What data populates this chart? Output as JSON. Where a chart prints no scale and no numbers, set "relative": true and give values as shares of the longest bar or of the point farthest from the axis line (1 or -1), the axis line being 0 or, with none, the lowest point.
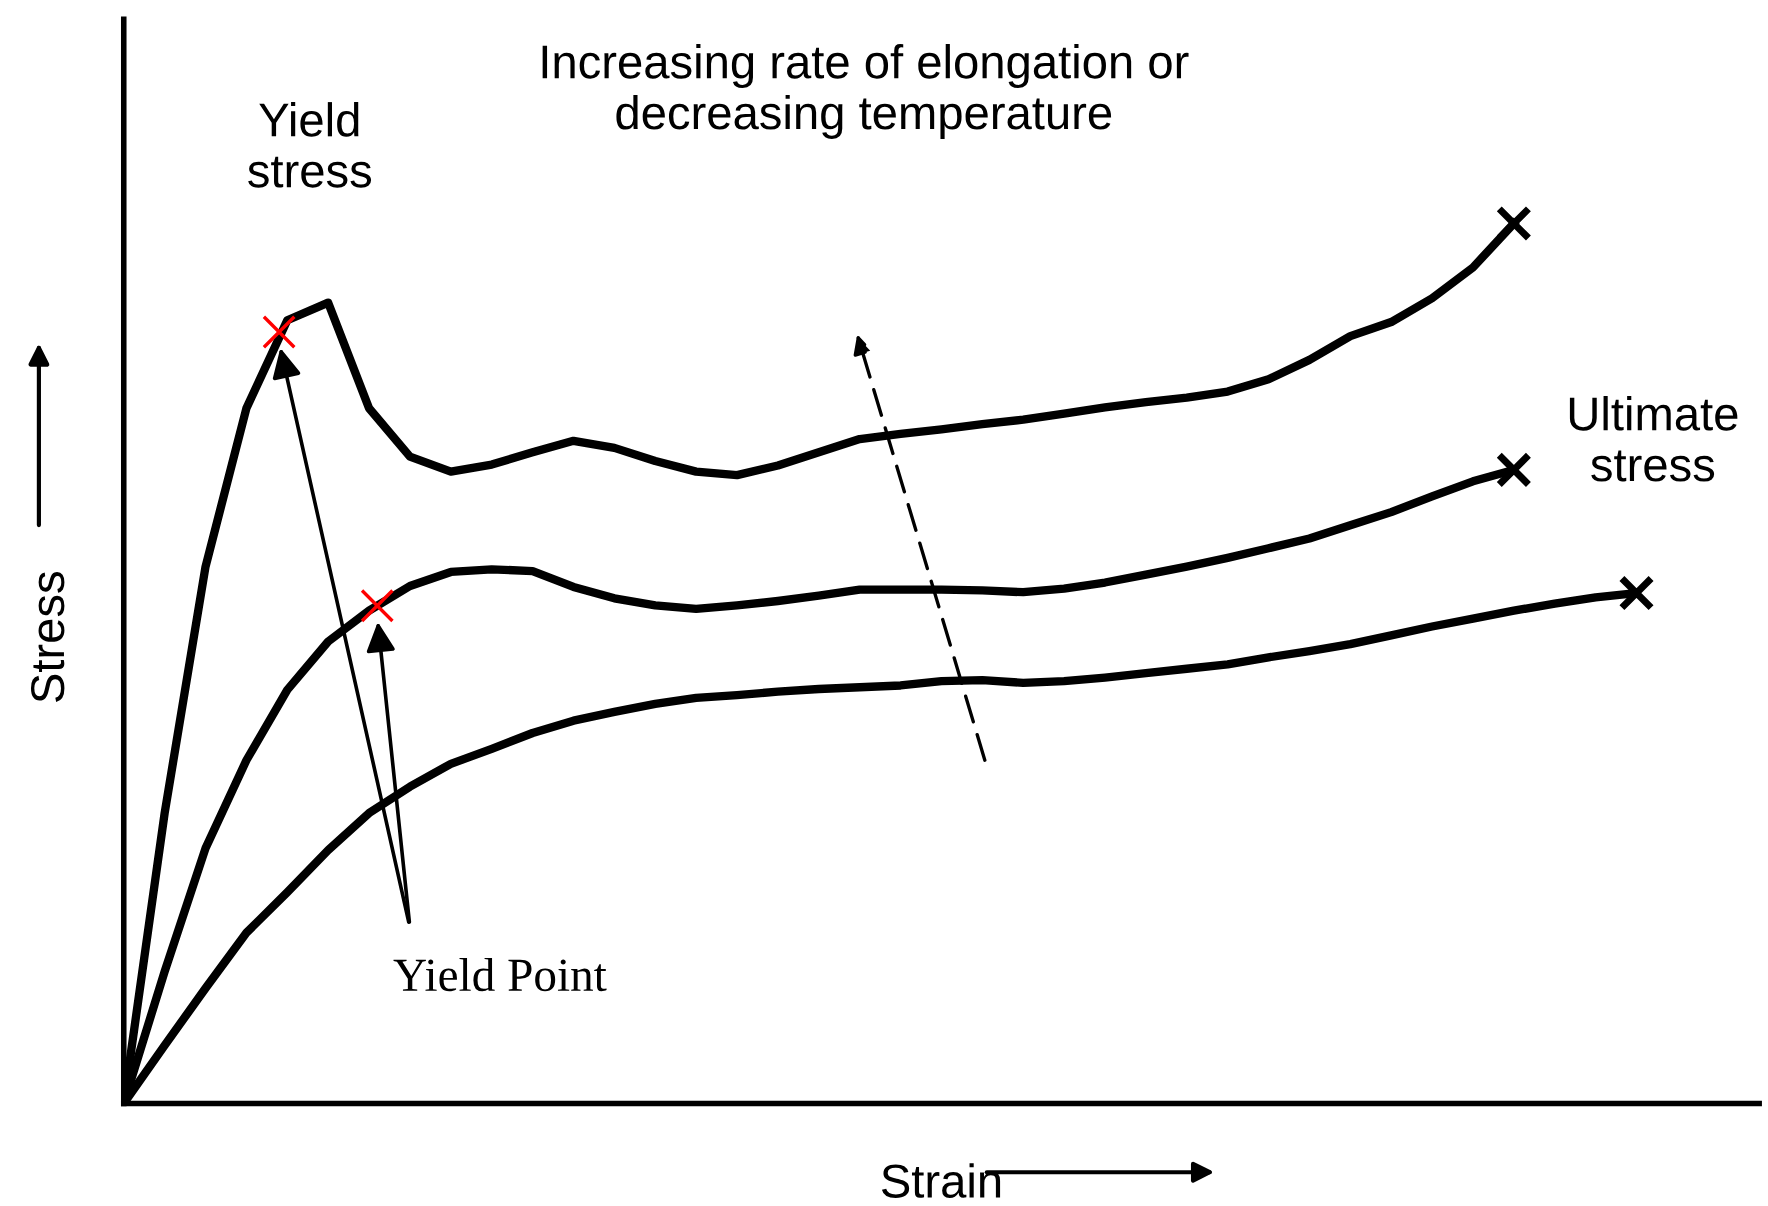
{
  "chart_data": {
    "type": "line",
    "relative": true,
    "xlabel": "Strain",
    "ylabel": "Stress",
    "line_style": "solid",
    "categories": [
      null,
      null,
      null,
      null,
      null,
      null,
      null,
      null,
      null,
      null,
      null,
      null,
      null,
      null,
      null,
      null,
      null,
      null,
      null,
      null,
      null,
      null,
      null,
      null,
      null,
      null,
      null,
      null,
      null,
      null,
      null,
      null,
      null,
      null,
      null,
      null,
      null,
      null
    ],
    "series": [
      {
        "color": "#000000",
        "values": [
          0,
          0.33,
          0.61,
          0.79,
          0.89,
          0.91,
          0.79,
          0.735,
          0.718,
          0.726,
          0.74,
          0.753,
          0.745,
          0.73,
          0.718,
          0.714,
          0.725,
          0.74,
          0.755,
          0.761,
          0.766,
          0.772,
          0.777,
          0.784,
          0.791,
          0.797,
          0.802,
          0.809,
          0.823,
          0.845,
          0.872,
          0.888,
          0.915,
          0.95,
          1,
          null,
          null,
          null
        ]
      },
      {
        "color": "#000000",
        "values": [
          0,
          0.15,
          0.29,
          0.39,
          0.47,
          0.525,
          0.56,
          0.588,
          0.604,
          0.607,
          0.605,
          0.587,
          0.574,
          0.566,
          0.562,
          0.566,
          0.571,
          0.577,
          0.584,
          0.584,
          0.584,
          0.583,
          0.581,
          0.585,
          0.592,
          0.601,
          0.61,
          0.62,
          0.631,
          0.642,
          0.657,
          0.672,
          0.69,
          0.707,
          0.72,
          null,
          null,
          null
        ]
      },
      {
        "color": "#000000",
        "values": [
          0,
          0.066,
          0.131,
          0.194,
          0.24,
          0.288,
          0.33,
          0.36,
          0.386,
          0.403,
          0.421,
          0.435,
          0.445,
          0.454,
          0.461,
          0.464,
          0.468,
          0.471,
          0.473,
          0.475,
          0.48,
          0.481,
          0.478,
          0.48,
          0.484,
          0.489,
          0.494,
          0.499,
          0.507,
          0.514,
          0.522,
          0.532,
          0.542,
          0.551,
          0.56,
          0.568,
          0.575,
          0.58
        ]
      }
    ],
    "annotations": [
      "Yield\nstress",
      "Increasing rate of elongation or\ndecreasing temperature",
      "Yield Point",
      "Ultimate\nstress"
    ]
  }
}
